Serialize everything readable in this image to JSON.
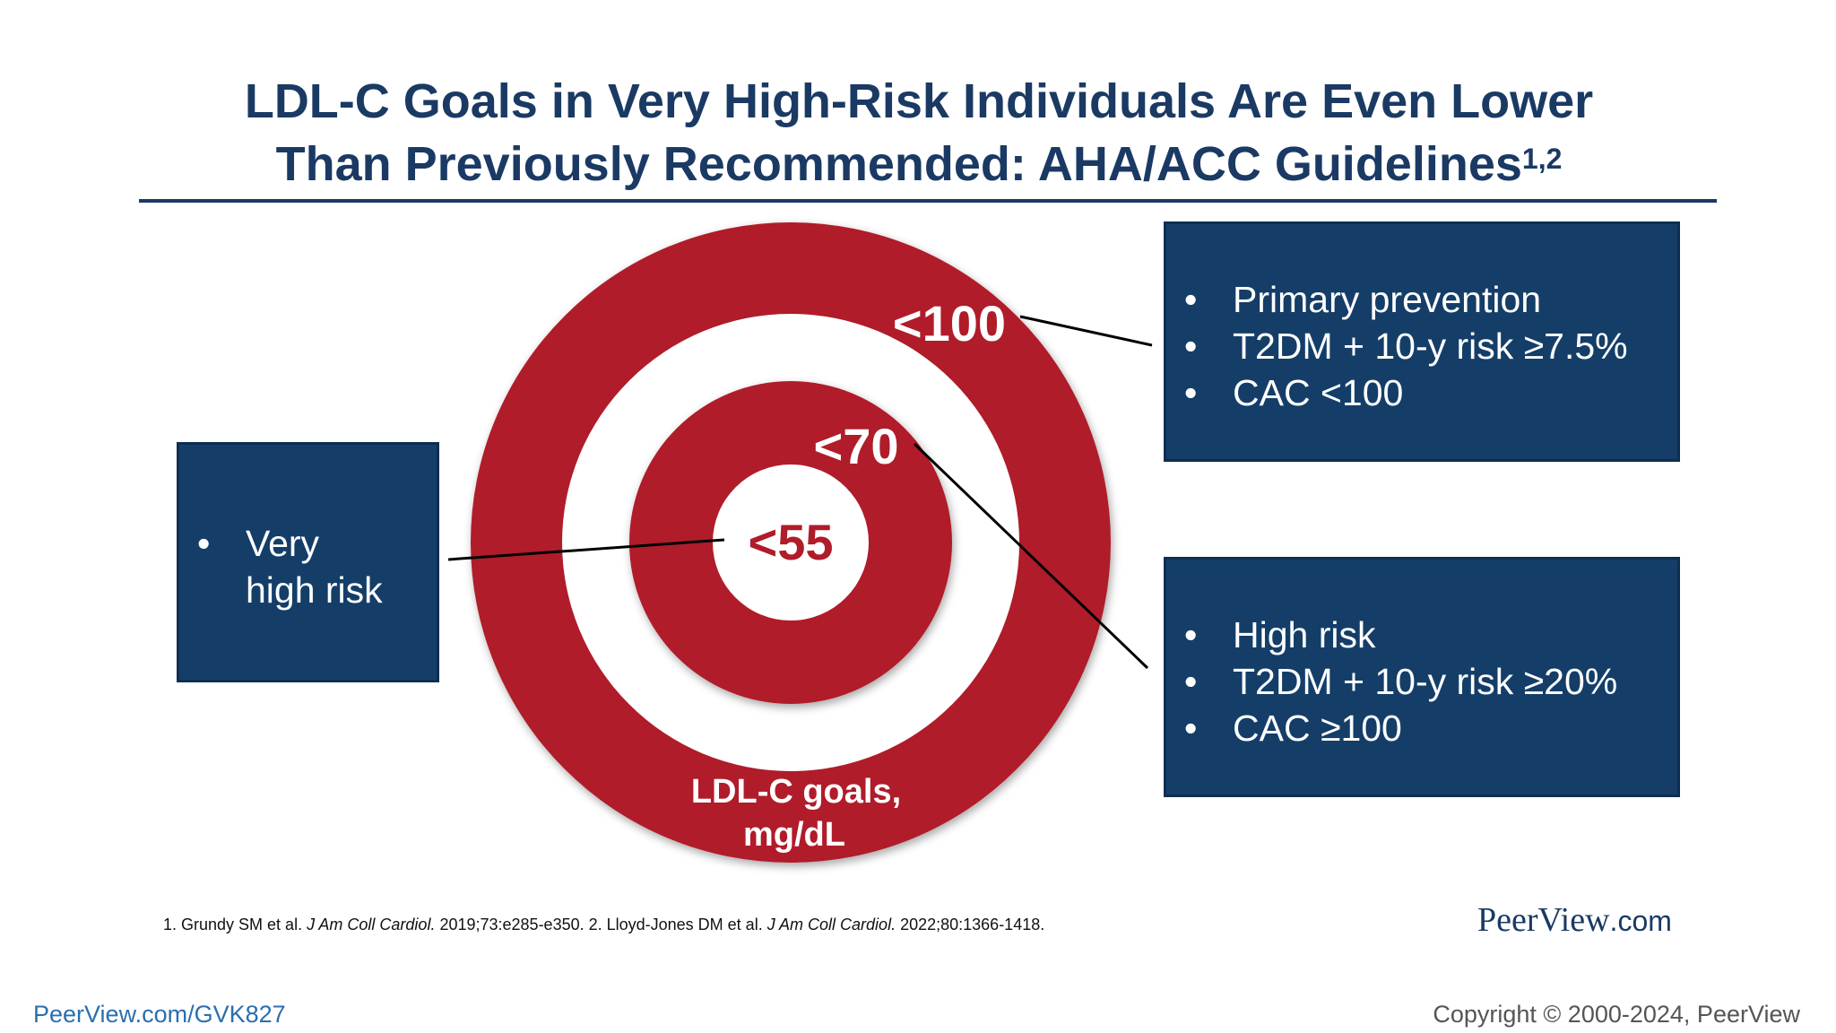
{
  "title": {
    "line1": "LDL-C Goals in Very High-Risk Individuals Are Even Lower",
    "line2": "Than Previously Recommended: AHA/ACC Guidelines",
    "superscript": "1,2"
  },
  "target": {
    "outer_label": "<100",
    "middle_label": "<70",
    "center_label": "<55",
    "caption_line1": "LDL-C goals,",
    "caption_line2": "mg/dL",
    "ring_color": "#b01c2a",
    "gap_color": "#ffffff"
  },
  "boxes": {
    "primary": {
      "items": [
        "Primary prevention",
        "T2DM + 10-y risk ≥7.5%",
        "CAC <100"
      ]
    },
    "high": {
      "items": [
        "High risk",
        "T2DM + 10-y risk ≥20%",
        "CAC ≥100"
      ]
    },
    "very_high": {
      "line1": "Very",
      "line2": "high risk"
    },
    "fill_color": "#143e68"
  },
  "references": {
    "ref1_pre": "1. Grundy SM et al. ",
    "ref1_journal": "J Am Coll Cardiol.",
    "ref1_post": " 2019;73:e285-e350. 2. Lloyd-Jones DM et al. ",
    "ref2_journal": "J Am Coll Cardiol.",
    "ref2_post": " 2022;80:1366-1418."
  },
  "brand": {
    "name": "PeerView",
    "suffix": ".com"
  },
  "footer": {
    "link": "PeerView.com/GVK827",
    "copyright": "Copyright © 2000-2024, PeerView"
  }
}
